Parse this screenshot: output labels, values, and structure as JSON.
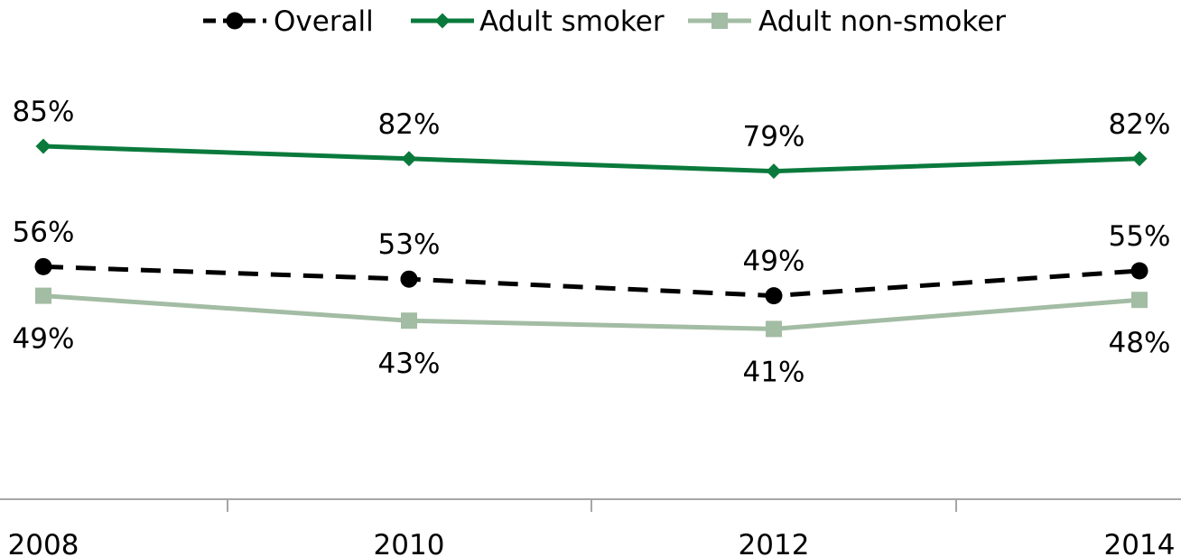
{
  "chart_data": {
    "type": "line",
    "title": "",
    "xlabel": "",
    "ylabel": "",
    "categories": [
      "2008",
      "2010",
      "2012",
      "2014"
    ],
    "ylim": [
      0,
      100
    ],
    "grid": false,
    "legend": "top-center",
    "series": [
      {
        "name": "Overall",
        "values": [
          56,
          53,
          49,
          55
        ],
        "labels": [
          "56%",
          "53%",
          "49%",
          "55%"
        ],
        "color": "#000000",
        "dash": true,
        "marker": "circle",
        "label_pos": "above"
      },
      {
        "name": "Adult smoker",
        "values": [
          85,
          82,
          79,
          82
        ],
        "labels": [
          "85%",
          "82%",
          "79%",
          "82%"
        ],
        "color": "#0a7a3c",
        "dash": false,
        "marker": "diamond",
        "label_pos": "above"
      },
      {
        "name": "Adult non-smoker",
        "values": [
          49,
          43,
          41,
          48
        ],
        "labels": [
          "49%",
          "43%",
          "41%",
          "48%"
        ],
        "color": "#a3bca4",
        "dash": false,
        "marker": "square",
        "label_pos": "below"
      }
    ]
  }
}
